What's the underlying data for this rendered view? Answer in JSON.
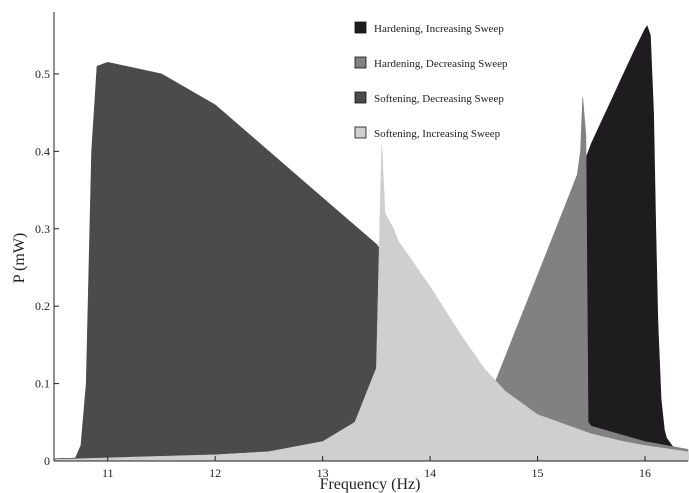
{
  "chart_data": {
    "type": "area",
    "title": "",
    "xlabel": "Frequency (Hz)",
    "ylabel": "P (mW)",
    "xlim": [
      10.5,
      16.4
    ],
    "ylim": [
      0,
      0.58
    ],
    "xticks": [
      11,
      12,
      13,
      14,
      15,
      16
    ],
    "yticks": [
      0,
      0.1,
      0.2,
      0.3,
      0.4,
      0.5
    ],
    "ytick_labels": [
      "0",
      "0.1",
      "0.2",
      "0.3",
      "0.4",
      "0.5"
    ],
    "grid": false,
    "legend_position": "top-right",
    "series": [
      {
        "name": "Hardening, Increasing Sweep",
        "color": "#1e1c1e",
        "x": [
          10.5,
          11.0,
          12.0,
          13.0,
          13.5,
          14.0,
          14.5,
          15.0,
          15.3,
          15.42,
          15.5,
          15.6,
          15.7,
          15.8,
          15.9,
          16.0,
          16.02,
          16.05,
          16.08,
          16.1,
          16.12,
          16.15,
          16.18,
          16.2,
          16.25,
          16.3,
          16.4
        ],
        "values": [
          0.003,
          0.004,
          0.006,
          0.012,
          0.02,
          0.03,
          0.045,
          0.07,
          0.1,
          0.38,
          0.41,
          0.44,
          0.47,
          0.5,
          0.53,
          0.558,
          0.562,
          0.55,
          0.45,
          0.3,
          0.18,
          0.08,
          0.04,
          0.03,
          0.02,
          0.013,
          0.008
        ]
      },
      {
        "name": "Hardening, Decreasing Sweep",
        "color": "#818181",
        "x": [
          10.5,
          11.0,
          12.0,
          13.0,
          13.5,
          14.0,
          14.3,
          14.5,
          14.6,
          14.8,
          15.0,
          15.2,
          15.3,
          15.37,
          15.4,
          15.42,
          15.45,
          15.47,
          15.5,
          16.0,
          16.4
        ],
        "values": [
          0.003,
          0.004,
          0.006,
          0.012,
          0.02,
          0.035,
          0.055,
          0.075,
          0.1,
          0.17,
          0.24,
          0.31,
          0.345,
          0.37,
          0.4,
          0.47,
          0.42,
          0.05,
          0.045,
          0.025,
          0.015
        ]
      },
      {
        "name": "Softening, Decreasing Sweep",
        "color": "#4b4b4b",
        "x": [
          10.5,
          10.7,
          10.75,
          10.8,
          10.85,
          10.9,
          11.0,
          11.5,
          12.0,
          12.5,
          13.0,
          13.5,
          14.0,
          14.5,
          15.0,
          15.5,
          16.0,
          16.4
        ],
        "values": [
          0.002,
          0.004,
          0.02,
          0.1,
          0.4,
          0.51,
          0.515,
          0.5,
          0.46,
          0.4,
          0.34,
          0.28,
          0.19,
          0.1,
          0.05,
          0.025,
          0.015,
          0.01
        ]
      },
      {
        "name": "Softening, Increasing Sweep",
        "color": "#cfcfcf",
        "x": [
          10.5,
          11.0,
          12.0,
          12.5,
          13.0,
          13.3,
          13.5,
          13.55,
          13.58,
          13.62,
          13.66,
          13.7,
          14.0,
          14.3,
          14.5,
          14.7,
          15.0,
          15.3,
          15.5,
          15.8,
          16.0,
          16.4
        ],
        "values": [
          0.002,
          0.004,
          0.008,
          0.012,
          0.025,
          0.05,
          0.12,
          0.41,
          0.32,
          0.31,
          0.3,
          0.285,
          0.225,
          0.16,
          0.12,
          0.09,
          0.06,
          0.045,
          0.035,
          0.025,
          0.02,
          0.012
        ]
      }
    ]
  }
}
